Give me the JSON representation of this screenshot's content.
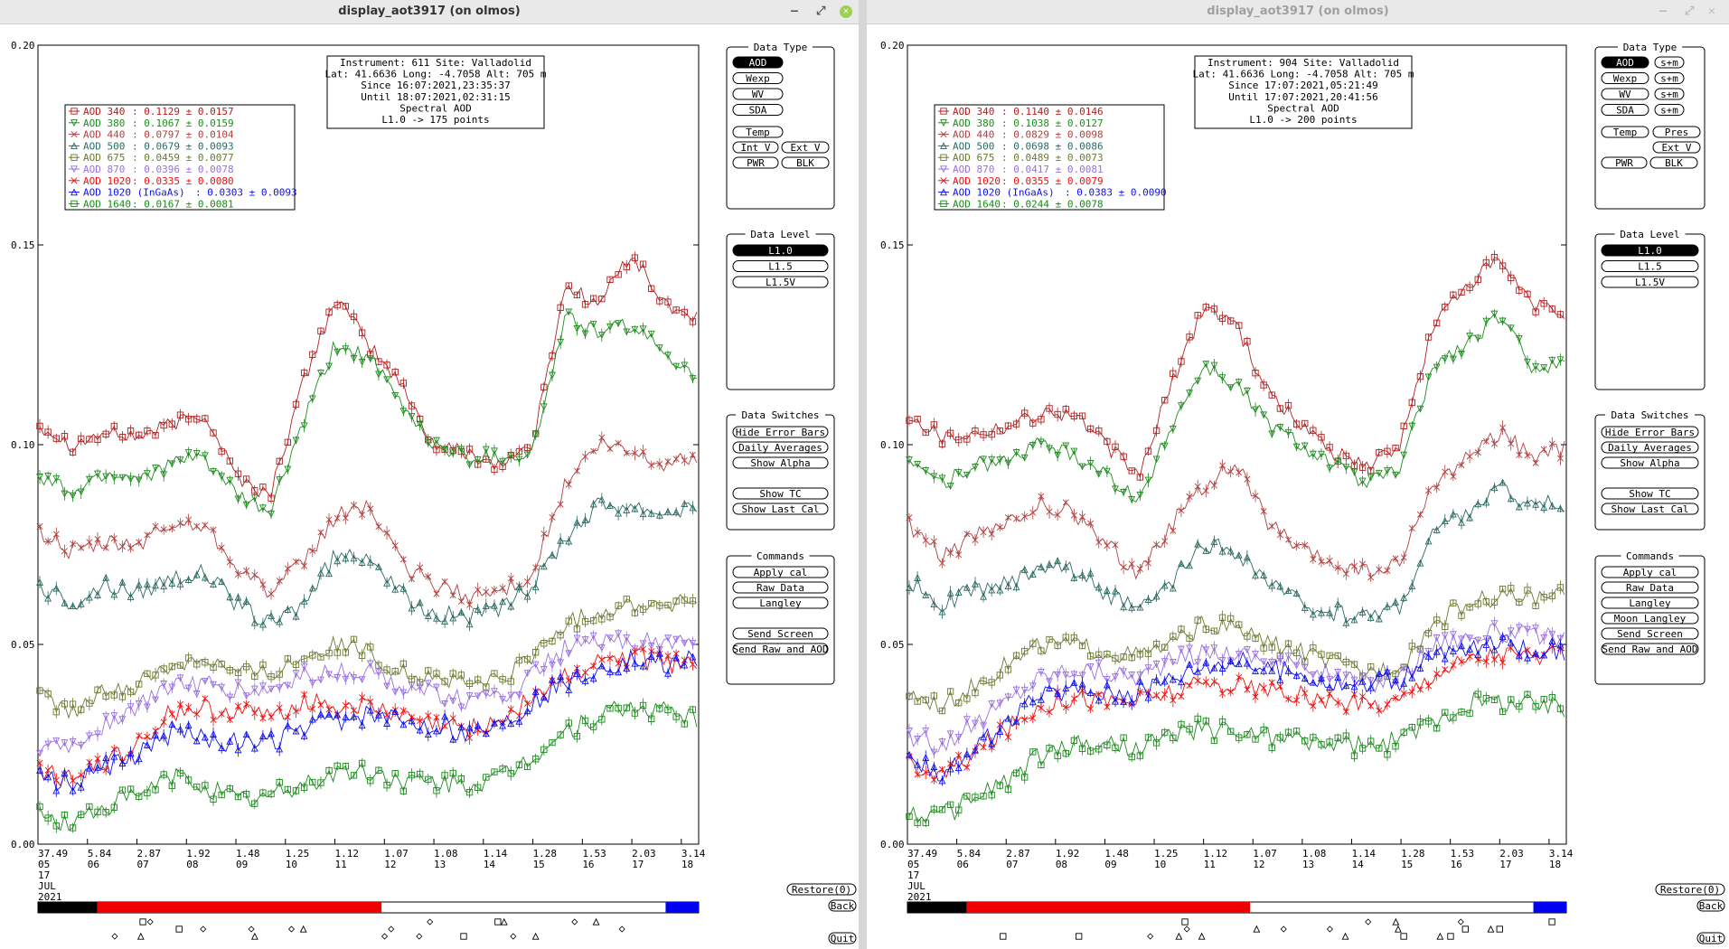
{
  "windows": [
    {
      "title": "display_aot3917 (on olmos)",
      "active": true,
      "info_lines": [
        "Instrument: 611 Site: Valladolid",
        "Lat: 41.6636 Long: -4.7058 Alt: 705 m",
        "Since 16:07:2021,23:35:37",
        "Until 18:07:2021,02:31:15",
        "Spectral AOD",
        "L1.0 -> 175 points"
      ],
      "legend": [
        {
          "label": "AOD 340",
          "stats": ": 0.1129 ± 0.0157",
          "color": "#b02020"
        },
        {
          "label": "AOD 380",
          "stats": ": 0.1067 ± 0.0159",
          "color": "#1e8c1e"
        },
        {
          "label": "AOD 440",
          "stats": ": 0.0797 ± 0.0104",
          "color": "#b04040"
        },
        {
          "label": "AOD 500",
          "stats": ": 0.0679 ± 0.0093",
          "color": "#2a6a60"
        },
        {
          "label": "AOD 675",
          "stats": ": 0.0459 ± 0.0077",
          "color": "#6a7a30"
        },
        {
          "label": "AOD 870",
          "stats": ": 0.0396 ± 0.0078",
          "color": "#9a70e0"
        },
        {
          "label": "AOD 1020",
          "stats": ": 0.0335 ± 0.0080",
          "color": "#ee1010"
        },
        {
          "label": "AOD 1020 (InGaAs)",
          "stats": ": 0.0303 ± 0.0093",
          "color": "#1010ee"
        },
        {
          "label": "AOD 1640",
          "stats": ": 0.0167 ± 0.0081",
          "color": "#1a8a1a"
        }
      ],
      "data_type": {
        "title": "Data Type",
        "buttons": [
          "AOD",
          "Wexp",
          "WV",
          "SDA"
        ],
        "selected": "AOD",
        "s_buttons": [],
        "row2": [
          "Temp"
        ],
        "row3": [
          "Int V",
          "Ext V"
        ],
        "row4": [
          "PWR",
          "BLK"
        ]
      },
      "data_level": {
        "title": "Data Level",
        "buttons": [
          "L1.0",
          "L1.5",
          "L1.5V"
        ],
        "selected": "L1.0"
      },
      "data_switches": {
        "title": "Data Switches",
        "buttons": [
          "Hide Error Bars",
          "Daily Averages",
          "Show Alpha",
          "Show TC",
          "Show Last Cal"
        ]
      },
      "commands": {
        "title": "Commands",
        "buttons": [
          "Apply cal",
          "Raw Data",
          "Langley",
          "Send Screen",
          "Send Raw and AOD"
        ]
      },
      "restore": "Restore(0)",
      "back": "Back",
      "quit": "Quit",
      "timeline": {
        "black_end": 0.09,
        "red_end": 0.52,
        "blue_start": 0.95
      }
    },
    {
      "title": "display_aot3917 (on olmos)",
      "active": false,
      "info_lines": [
        "Instrument: 904 Site: Valladolid",
        "Lat: 41.6636 Long: -4.7058 Alt: 705 m",
        "Since 17:07:2021,05:21:49",
        "Until 17:07:2021,20:41:56",
        "Spectral AOD",
        "L1.0 -> 200 points"
      ],
      "legend": [
        {
          "label": "AOD 340",
          "stats": ": 0.1140 ± 0.0146",
          "color": "#b02020"
        },
        {
          "label": "AOD 380",
          "stats": ": 0.1038 ± 0.0127",
          "color": "#1e8c1e"
        },
        {
          "label": "AOD 440",
          "stats": ": 0.0829 ± 0.0098",
          "color": "#b04040"
        },
        {
          "label": "AOD 500",
          "stats": ": 0.0698 ± 0.0086",
          "color": "#2a6a60"
        },
        {
          "label": "AOD 675",
          "stats": ": 0.0489 ± 0.0073",
          "color": "#6a7a30"
        },
        {
          "label": "AOD 870",
          "stats": ": 0.0417 ± 0.0081",
          "color": "#9a70e0"
        },
        {
          "label": "AOD 1020",
          "stats": ": 0.0355 ± 0.0079",
          "color": "#ee1010"
        },
        {
          "label": "AOD 1020 (InGaAs)",
          "stats": ": 0.0383 ± 0.0090",
          "color": "#1010ee"
        },
        {
          "label": "AOD 1640",
          "stats": ": 0.0244 ± 0.0078",
          "color": "#1a8a1a"
        }
      ],
      "data_type": {
        "title": "Data Type",
        "buttons": [
          "AOD",
          "Wexp",
          "WV",
          "SDA"
        ],
        "selected": "AOD",
        "s_buttons": [
          "s+m",
          "s+m",
          "s+m",
          "s+m"
        ],
        "row2": [
          "Temp",
          "Pres"
        ],
        "row3": [
          "Ext V"
        ],
        "row4": [
          "PWR",
          "BLK"
        ]
      },
      "data_level": {
        "title": "Data Level",
        "buttons": [
          "L1.0",
          "L1.5",
          "L1.5V"
        ],
        "selected": "L1.0"
      },
      "data_switches": {
        "title": "Data Switches",
        "buttons": [
          "Hide Error Bars",
          "Daily Averages",
          "Show Alpha",
          "Show TC",
          "Show Last Cal"
        ]
      },
      "commands": {
        "title": "Commands",
        "buttons": [
          "Apply cal",
          "Raw Data",
          "Langley",
          "Moon Langley",
          "Send Screen",
          "Send Raw and AOD"
        ]
      },
      "restore": "Restore(0)",
      "back": "Back",
      "quit": "Quit",
      "timeline": {
        "black_end": 0.09,
        "red_end": 0.52,
        "blue_start": 0.95
      }
    }
  ],
  "chart_data": [
    {
      "type": "line",
      "ylim": [
        0,
        0.2
      ],
      "yticks": [
        "0.00",
        "0.05",
        "0.10",
        "0.15",
        "0.20"
      ],
      "xlabels": [
        {
          "top": "37.49",
          "sub": [
            "05",
            "17",
            "JUL",
            "2021"
          ]
        },
        {
          "top": "5.84",
          "sub": [
            "06"
          ]
        },
        {
          "top": "2.87",
          "sub": [
            "07"
          ]
        },
        {
          "top": "1.92",
          "sub": [
            "08"
          ]
        },
        {
          "top": "1.48",
          "sub": [
            "09"
          ]
        },
        {
          "top": "1.25",
          "sub": [
            "10"
          ]
        },
        {
          "top": "1.12",
          "sub": [
            "11"
          ]
        },
        {
          "top": "1.07",
          "sub": [
            "12"
          ]
        },
        {
          "top": "1.08",
          "sub": [
            "13"
          ]
        },
        {
          "top": "1.14",
          "sub": [
            "14"
          ]
        },
        {
          "top": "1.28",
          "sub": [
            "15"
          ]
        },
        {
          "top": "1.53",
          "sub": [
            "16"
          ]
        },
        {
          "top": "2.03",
          "sub": [
            "17"
          ]
        },
        {
          "top": "3.14",
          "sub": [
            "18"
          ]
        }
      ],
      "series": [
        {
          "name": "AOD 340",
          "marker": "square",
          "values": [
            0.105,
            0.1,
            0.103,
            0.102,
            0.105,
            0.108,
            0.092,
            0.087,
            0.115,
            0.137,
            0.125,
            0.115,
            0.1,
            0.098,
            0.095,
            0.1,
            0.14,
            0.135,
            0.148,
            0.135,
            0.132
          ]
        },
        {
          "name": "AOD 380",
          "marker": "tri-down",
          "values": [
            0.092,
            0.088,
            0.093,
            0.092,
            0.095,
            0.097,
            0.087,
            0.083,
            0.105,
            0.125,
            0.122,
            0.11,
            0.1,
            0.097,
            0.097,
            0.098,
            0.132,
            0.128,
            0.13,
            0.123,
            0.118
          ]
        },
        {
          "name": "AOD 440",
          "marker": "x",
          "values": [
            0.078,
            0.073,
            0.075,
            0.075,
            0.08,
            0.08,
            0.07,
            0.063,
            0.07,
            0.082,
            0.085,
            0.07,
            0.065,
            0.062,
            0.063,
            0.068,
            0.09,
            0.1,
            0.098,
            0.095,
            0.097
          ]
        },
        {
          "name": "AOD 500",
          "marker": "tri-up",
          "values": [
            0.064,
            0.06,
            0.065,
            0.063,
            0.067,
            0.068,
            0.06,
            0.055,
            0.06,
            0.072,
            0.073,
            0.062,
            0.058,
            0.057,
            0.058,
            0.065,
            0.077,
            0.085,
            0.085,
            0.083,
            0.085
          ]
        },
        {
          "name": "AOD 675",
          "marker": "square",
          "values": [
            0.037,
            0.033,
            0.038,
            0.04,
            0.045,
            0.047,
            0.043,
            0.043,
            0.047,
            0.05,
            0.048,
            0.043,
            0.042,
            0.04,
            0.041,
            0.047,
            0.055,
            0.058,
            0.06,
            0.06,
            0.061
          ]
        },
        {
          "name": "AOD 870",
          "marker": "tri-down",
          "values": [
            0.025,
            0.024,
            0.03,
            0.034,
            0.04,
            0.04,
            0.038,
            0.038,
            0.042,
            0.043,
            0.043,
            0.04,
            0.038,
            0.036,
            0.036,
            0.042,
            0.049,
            0.05,
            0.051,
            0.05,
            0.051
          ]
        },
        {
          "name": "AOD 1020",
          "marker": "x",
          "values": [
            0.018,
            0.016,
            0.021,
            0.025,
            0.033,
            0.034,
            0.033,
            0.032,
            0.036,
            0.035,
            0.034,
            0.032,
            0.03,
            0.029,
            0.031,
            0.037,
            0.042,
            0.045,
            0.047,
            0.045,
            0.046
          ]
        },
        {
          "name": "AOD 1020 (InGaAs)",
          "marker": "tri-up",
          "values": [
            0.017,
            0.015,
            0.019,
            0.022,
            0.028,
            0.027,
            0.025,
            0.025,
            0.029,
            0.031,
            0.032,
            0.031,
            0.03,
            0.028,
            0.03,
            0.035,
            0.041,
            0.044,
            0.046,
            0.045,
            0.046
          ]
        },
        {
          "name": "AOD 1640",
          "marker": "square",
          "values": [
            0.007,
            0.005,
            0.01,
            0.012,
            0.017,
            0.015,
            0.011,
            0.012,
            0.015,
            0.018,
            0.018,
            0.016,
            0.015,
            0.015,
            0.016,
            0.022,
            0.028,
            0.032,
            0.034,
            0.033,
            0.032
          ]
        }
      ]
    },
    {
      "type": "line",
      "ylim": [
        0,
        0.2
      ],
      "yticks": [
        "0.00",
        "0.05",
        "0.10",
        "0.15",
        "0.20"
      ],
      "xlabels": [
        {
          "top": "37.49",
          "sub": [
            "05",
            "17",
            "JUL",
            "2021"
          ]
        },
        {
          "top": "5.84",
          "sub": [
            "06"
          ]
        },
        {
          "top": "2.87",
          "sub": [
            "07"
          ]
        },
        {
          "top": "1.92",
          "sub": [
            "08"
          ]
        },
        {
          "top": "1.48",
          "sub": [
            "09"
          ]
        },
        {
          "top": "1.25",
          "sub": [
            "10"
          ]
        },
        {
          "top": "1.12",
          "sub": [
            "11"
          ]
        },
        {
          "top": "1.07",
          "sub": [
            "12"
          ]
        },
        {
          "top": "1.08",
          "sub": [
            "13"
          ]
        },
        {
          "top": "1.14",
          "sub": [
            "14"
          ]
        },
        {
          "top": "1.28",
          "sub": [
            "15"
          ]
        },
        {
          "top": "1.53",
          "sub": [
            "16"
          ]
        },
        {
          "top": "2.03",
          "sub": [
            "17"
          ]
        },
        {
          "top": "3.14",
          "sub": [
            "18"
          ]
        }
      ],
      "series": [
        {
          "name": "AOD 340",
          "marker": "square",
          "values": [
            0.108,
            0.102,
            0.103,
            0.105,
            0.108,
            0.108,
            0.1,
            0.092,
            0.115,
            0.135,
            0.13,
            0.112,
            0.105,
            0.098,
            0.095,
            0.1,
            0.13,
            0.14,
            0.146,
            0.135,
            0.133
          ]
        },
        {
          "name": "AOD 380",
          "marker": "tri-down",
          "values": [
            0.097,
            0.09,
            0.095,
            0.096,
            0.1,
            0.098,
            0.093,
            0.085,
            0.105,
            0.12,
            0.115,
            0.105,
            0.1,
            0.095,
            0.09,
            0.094,
            0.12,
            0.125,
            0.132,
            0.12,
            0.12
          ]
        },
        {
          "name": "AOD 440",
          "marker": "x",
          "values": [
            0.08,
            0.072,
            0.077,
            0.08,
            0.085,
            0.083,
            0.075,
            0.068,
            0.08,
            0.09,
            0.095,
            0.08,
            0.073,
            0.07,
            0.068,
            0.07,
            0.09,
            0.097,
            0.103,
            0.097,
            0.099
          ]
        },
        {
          "name": "AOD 500",
          "marker": "tri-up",
          "values": [
            0.066,
            0.06,
            0.064,
            0.065,
            0.07,
            0.069,
            0.063,
            0.058,
            0.065,
            0.075,
            0.073,
            0.065,
            0.06,
            0.058,
            0.057,
            0.06,
            0.078,
            0.083,
            0.089,
            0.085,
            0.085
          ]
        },
        {
          "name": "AOD 675",
          "marker": "square",
          "values": [
            0.038,
            0.035,
            0.04,
            0.045,
            0.05,
            0.05,
            0.048,
            0.047,
            0.05,
            0.055,
            0.054,
            0.05,
            0.048,
            0.045,
            0.043,
            0.045,
            0.055,
            0.06,
            0.062,
            0.062,
            0.062
          ]
        },
        {
          "name": "AOD 870",
          "marker": "tri-down",
          "values": [
            0.027,
            0.025,
            0.03,
            0.036,
            0.042,
            0.044,
            0.043,
            0.042,
            0.046,
            0.048,
            0.048,
            0.046,
            0.045,
            0.042,
            0.04,
            0.042,
            0.05,
            0.052,
            0.053,
            0.052,
            0.052
          ]
        },
        {
          "name": "AOD 1020",
          "marker": "x",
          "values": [
            0.02,
            0.017,
            0.023,
            0.029,
            0.035,
            0.037,
            0.036,
            0.036,
            0.038,
            0.04,
            0.04,
            0.038,
            0.037,
            0.035,
            0.035,
            0.036,
            0.043,
            0.046,
            0.048,
            0.047,
            0.047
          ]
        },
        {
          "name": "AOD 1020 (InGaAs)",
          "marker": "tri-up",
          "values": [
            0.02,
            0.018,
            0.024,
            0.03,
            0.037,
            0.039,
            0.038,
            0.038,
            0.042,
            0.045,
            0.046,
            0.044,
            0.043,
            0.04,
            0.04,
            0.041,
            0.047,
            0.049,
            0.05,
            0.049,
            0.048
          ]
        },
        {
          "name": "AOD 1640",
          "marker": "square",
          "values": [
            0.008,
            0.007,
            0.012,
            0.016,
            0.022,
            0.025,
            0.025,
            0.024,
            0.027,
            0.029,
            0.028,
            0.027,
            0.026,
            0.025,
            0.024,
            0.026,
            0.031,
            0.035,
            0.036,
            0.035,
            0.034
          ]
        }
      ]
    }
  ]
}
